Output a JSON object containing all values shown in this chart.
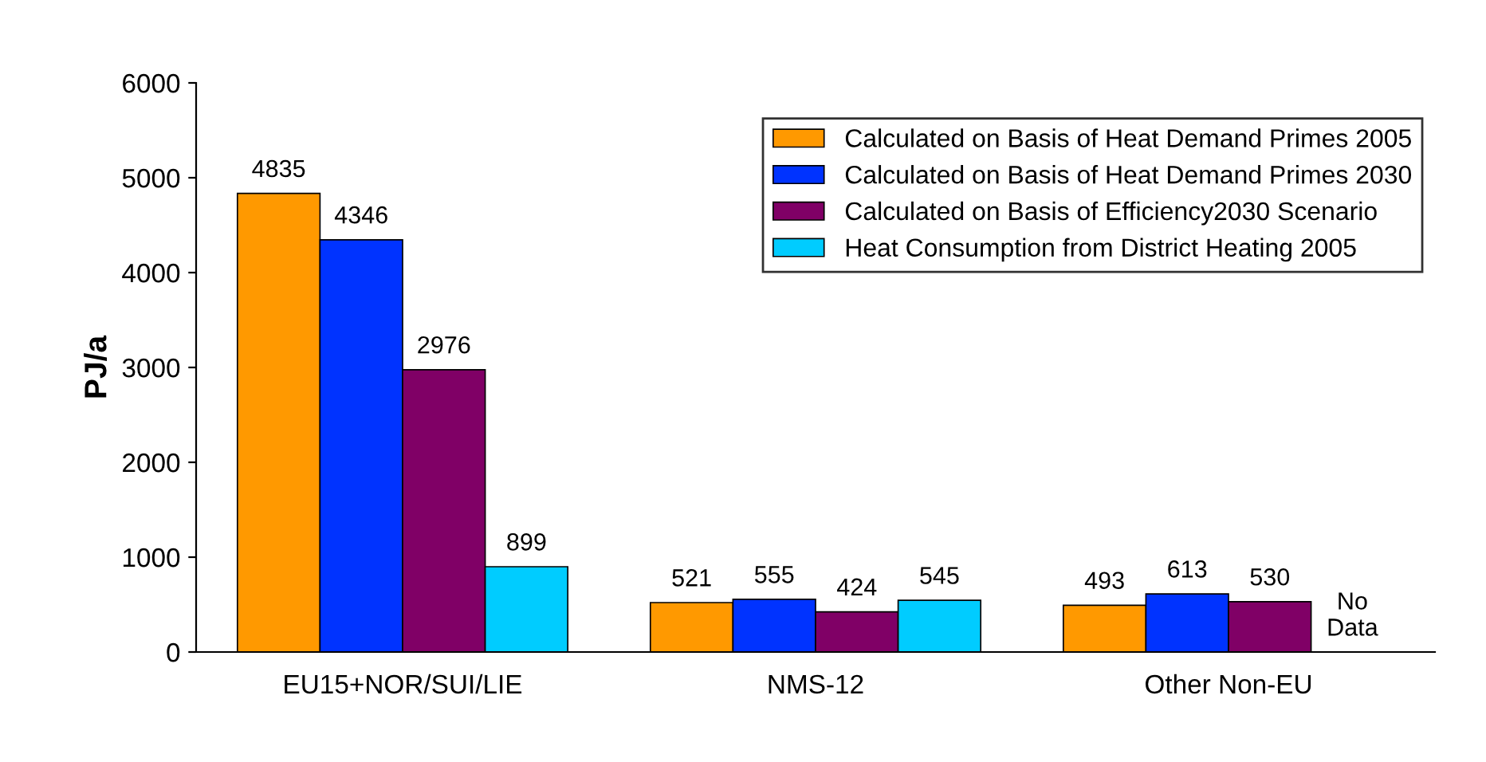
{
  "chart_data": {
    "type": "bar",
    "ylabel": "PJ/a",
    "categories": [
      "EU15+NOR/SUI/LIE",
      "NMS-12",
      "Other Non-EU"
    ],
    "series": [
      {
        "name": "Calculated on Basis of Heat Demand Primes 2005",
        "color": "#ff9900",
        "values": [
          4835,
          521,
          493
        ],
        "value_labels": [
          "4835",
          "521",
          "493"
        ]
      },
      {
        "name": "Calculated on Basis of Heat Demand Primes 2030",
        "color": "#0033ff",
        "values": [
          4346,
          555,
          613
        ],
        "value_labels": [
          "4346",
          "555",
          "613"
        ]
      },
      {
        "name": "Calculated on Basis of Efficiency2030 Scenario",
        "color": "#800066",
        "values": [
          2976,
          424,
          530
        ],
        "value_labels": [
          "2976",
          "424",
          "530"
        ]
      },
      {
        "name": "Heat Consumption from District Heating 2005",
        "color": "#00ccff",
        "values": [
          899,
          545,
          null
        ],
        "value_labels": [
          "899",
          "545",
          "No\nData"
        ]
      }
    ],
    "ylim": [
      0,
      6000
    ],
    "yticks": [
      0,
      1000,
      2000,
      3000,
      4000,
      5000,
      6000
    ],
    "grid": false,
    "legend": "top right"
  }
}
